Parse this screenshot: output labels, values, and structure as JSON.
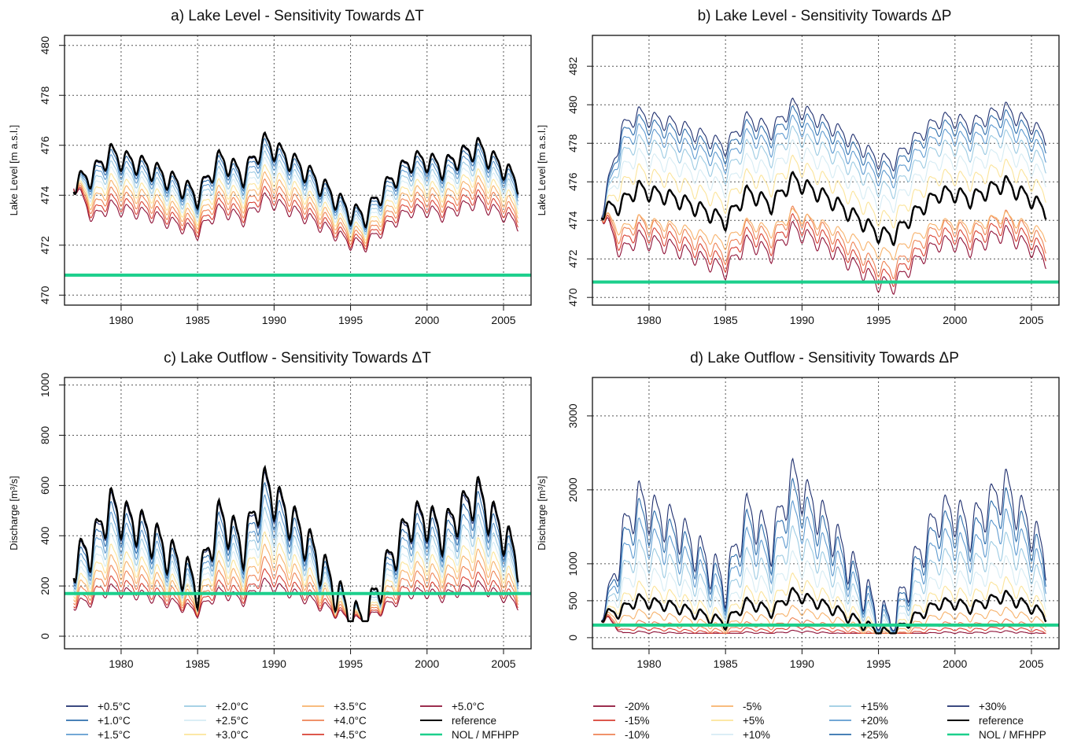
{
  "chart_data": [
    {
      "id": "a",
      "type": "line",
      "title": "a) Lake Level - Sensitivity Towards ΔT",
      "ylabel": "Lake Level [m a.s.l.]",
      "xlim": [
        1976.3,
        2006.8
      ],
      "ylim": [
        469.6,
        480.4
      ],
      "xticks": [
        1980,
        1985,
        1990,
        1995,
        2000,
        2005
      ],
      "yticks": [
        470,
        472,
        474,
        476,
        478,
        480
      ],
      "reference_line": {
        "label": "NOL / MFHPP",
        "value": 470.8,
        "color": "#1ccf8c"
      },
      "model": "level",
      "scenarios": [
        {
          "name": "+0.5°C",
          "factor": 0.98,
          "color": "#1f2f6e"
        },
        {
          "name": "+1.0°C",
          "factor": 0.92,
          "color": "#2f6fad"
        },
        {
          "name": "+1.5°C",
          "factor": 0.84,
          "color": "#5f9bd0"
        },
        {
          "name": "+2.0°C",
          "factor": 0.75,
          "color": "#9ccbe3"
        },
        {
          "name": "+2.5°C",
          "factor": 0.66,
          "color": "#d6ecf4"
        },
        {
          "name": "+3.0°C",
          "factor": 0.56,
          "color": "#fbe49a"
        },
        {
          "name": "+3.5°C",
          "factor": 0.46,
          "color": "#f7b26b"
        },
        {
          "name": "+4.0°C",
          "factor": 0.36,
          "color": "#ee8354"
        },
        {
          "name": "+4.5°C",
          "factor": 0.26,
          "color": "#d84032"
        },
        {
          "name": "+5.0°C",
          "factor": 0.17,
          "color": "#8e1036"
        },
        {
          "name": "reference",
          "factor": 1.0,
          "color": "#000000"
        }
      ]
    },
    {
      "id": "b",
      "type": "line",
      "title": "b) Lake Level - Sensitivity Towards ΔP",
      "ylabel": "Lake Level [m a.s.l.]",
      "xlim": [
        1976.3,
        2006.8
      ],
      "ylim": [
        469.6,
        483.6
      ],
      "xticks": [
        1980,
        1985,
        1990,
        1995,
        2000,
        2005
      ],
      "yticks": [
        470,
        472,
        474,
        476,
        478,
        480,
        482
      ],
      "reference_line": {
        "label": "NOL / MFHPP",
        "value": 470.8,
        "color": "#1ccf8c"
      },
      "model": "level",
      "scenarios": [
        {
          "name": "-20%",
          "factor": -0.6,
          "color": "#8e1036"
        },
        {
          "name": "-15%",
          "factor": -0.35,
          "color": "#d84032"
        },
        {
          "name": "-10%",
          "factor": -0.1,
          "color": "#ee8354"
        },
        {
          "name": "-5%",
          "factor": 0.35,
          "color": "#f7b26b"
        },
        {
          "name": "+5%",
          "factor": 1.55,
          "color": "#fbe49a"
        },
        {
          "name": "+10%",
          "factor": 2.05,
          "color": "#d6ecf4"
        },
        {
          "name": "+15%",
          "factor": 2.5,
          "color": "#9ccbe3"
        },
        {
          "name": "+20%",
          "factor": 2.85,
          "color": "#5f9bd0"
        },
        {
          "name": "+25%",
          "factor": 3.15,
          "color": "#2f6fad"
        },
        {
          "name": "+30%",
          "factor": 3.4,
          "color": "#1f2f6e"
        },
        {
          "name": "reference",
          "factor": 1.0,
          "color": "#000000"
        }
      ]
    },
    {
      "id": "c",
      "type": "line",
      "title": "c) Lake Outflow - Sensitivity Towards ΔT",
      "ylabel": "Discharge [m³/s]",
      "xlim": [
        1976.3,
        2006.8
      ],
      "ylim": [
        -50,
        1030
      ],
      "xticks": [
        1980,
        1985,
        1990,
        1995,
        2000,
        2005
      ],
      "yticks": [
        0,
        200,
        400,
        600,
        800,
        1000
      ],
      "reference_line": {
        "label": "NOL / MFHPP",
        "value": 170,
        "color": "#1ccf8c"
      },
      "model": "flow",
      "scenarios": [
        {
          "name": "+0.5°C",
          "factor": 0.97,
          "color": "#1f2f6e"
        },
        {
          "name": "+1.0°C",
          "factor": 0.9,
          "color": "#2f6fad"
        },
        {
          "name": "+1.5°C",
          "factor": 0.82,
          "color": "#5f9bd0"
        },
        {
          "name": "+2.0°C",
          "factor": 0.74,
          "color": "#9ccbe3"
        },
        {
          "name": "+2.5°C",
          "factor": 0.66,
          "color": "#d6ecf4"
        },
        {
          "name": "+3.0°C",
          "factor": 0.58,
          "color": "#fbe49a"
        },
        {
          "name": "+3.5°C",
          "factor": 0.5,
          "color": "#f7b26b"
        },
        {
          "name": "+4.0°C",
          "factor": 0.42,
          "color": "#ee8354"
        },
        {
          "name": "+4.5°C",
          "factor": 0.34,
          "color": "#d84032"
        },
        {
          "name": "+5.0°C",
          "factor": 0.28,
          "color": "#8e1036"
        },
        {
          "name": "reference",
          "factor": 1.0,
          "color": "#000000"
        }
      ]
    },
    {
      "id": "d",
      "type": "line",
      "title": "d) Lake Outflow - Sensitivity Towards ΔP",
      "ylabel": "Discharge [m³/s]",
      "xlim": [
        1976.3,
        2006.8
      ],
      "ylim": [
        -150,
        3520
      ],
      "xticks": [
        1980,
        1985,
        1990,
        1995,
        2000,
        2005
      ],
      "yticks": [
        0,
        500,
        1000,
        2000,
        3000
      ],
      "reference_line": {
        "label": "NOL / MFHPP",
        "value": 170,
        "color": "#1ccf8c"
      },
      "model": "flow",
      "scenarios": [
        {
          "name": "-20%",
          "factor": 0.15,
          "color": "#8e1036"
        },
        {
          "name": "-15%",
          "factor": 0.25,
          "color": "#d84032"
        },
        {
          "name": "-10%",
          "factor": 0.4,
          "color": "#ee8354"
        },
        {
          "name": "-5%",
          "factor": 0.65,
          "color": "#f7b26b"
        },
        {
          "name": "+5%",
          "factor": 1.3,
          "color": "#fbe49a"
        },
        {
          "name": "+10%",
          "factor": 1.75,
          "color": "#d6ecf4"
        },
        {
          "name": "+15%",
          "factor": 2.25,
          "color": "#9ccbe3"
        },
        {
          "name": "+20%",
          "factor": 2.75,
          "color": "#5f9bd0"
        },
        {
          "name": "+25%",
          "factor": 3.2,
          "color": "#2f6fad"
        },
        {
          "name": "+30%",
          "factor": 3.6,
          "color": "#1f2f6e"
        },
        {
          "name": "reference",
          "factor": 1.0,
          "color": "#000000"
        }
      ]
    }
  ],
  "reference_anomaly": {
    "description_years": [
      1976.9,
      1978.0,
      1979.3,
      1980.0,
      1981.0,
      1982.0,
      1983.0,
      1984.0,
      1985.0,
      1986.4,
      1987.0,
      1988.0,
      1989.4,
      1990.0,
      1991.0,
      1992.0,
      1993.0,
      1994.0,
      1995.0,
      1996.0,
      1997.0,
      1998.0,
      1999.0,
      2000.0,
      2001.0,
      2002.0,
      2003.3,
      2004.0,
      2005.0,
      2005.9
    ],
    "values": [
      0.0,
      0.25,
      1.2,
      0.95,
      0.8,
      0.55,
      0.2,
      -0.15,
      -0.55,
      0.95,
      0.75,
      0.3,
      1.65,
      1.35,
      0.95,
      0.5,
      -0.05,
      -0.6,
      -1.2,
      -1.3,
      -0.4,
      0.3,
      0.9,
      0.9,
      0.6,
      1.0,
      1.45,
      1.05,
      0.6,
      0.0
    ]
  },
  "legend_left": [
    {
      "label": "+0.5°C",
      "color": "#1f2f6e"
    },
    {
      "label": "+1.0°C",
      "color": "#2f6fad"
    },
    {
      "label": "+1.5°C",
      "color": "#5f9bd0"
    },
    {
      "label": "+2.0°C",
      "color": "#9ccbe3"
    },
    {
      "label": "+2.5°C",
      "color": "#d6ecf4"
    },
    {
      "label": "+3.0°C",
      "color": "#fbe49a"
    },
    {
      "label": "+3.5°C",
      "color": "#f7b26b"
    },
    {
      "label": "+4.0°C",
      "color": "#ee8354"
    },
    {
      "label": "+4.5°C",
      "color": "#d84032"
    },
    {
      "label": "+5.0°C",
      "color": "#8e1036"
    },
    {
      "label": "reference",
      "color": "#000000"
    },
    {
      "label": "NOL / MFHPP",
      "color": "#1ccf8c"
    }
  ],
  "legend_right": [
    {
      "label": "-20%",
      "color": "#8e1036"
    },
    {
      "label": "-15%",
      "color": "#d84032"
    },
    {
      "label": "-10%",
      "color": "#ee8354"
    },
    {
      "label": "-5%",
      "color": "#f7b26b"
    },
    {
      "label": "+5%",
      "color": "#fbe49a"
    },
    {
      "label": "+10%",
      "color": "#d6ecf4"
    },
    {
      "label": "+15%",
      "color": "#9ccbe3"
    },
    {
      "label": "+20%",
      "color": "#5f9bd0"
    },
    {
      "label": "+25%",
      "color": "#2f6fad"
    },
    {
      "label": "+30%",
      "color": "#1f2f6e"
    },
    {
      "label": "reference",
      "color": "#000000"
    },
    {
      "label": "NOL / MFHPP",
      "color": "#1ccf8c"
    }
  ]
}
